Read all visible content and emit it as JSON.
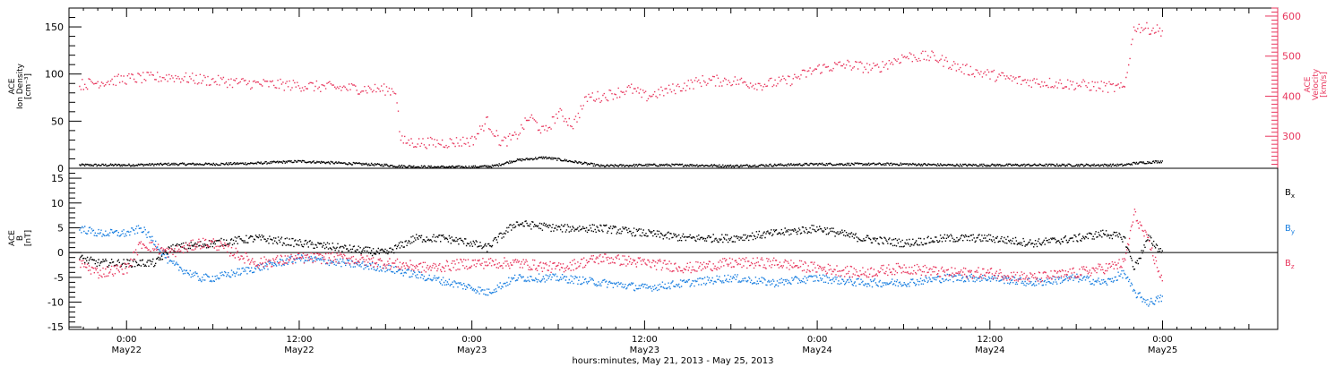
{
  "chart_data": [
    {
      "type": "scatter",
      "panel": "density-velocity",
      "ylabel_left": [
        "ACE",
        "Ion Density",
        "[cm⁻³]"
      ],
      "ylabel_right": [
        "ACE",
        "Velocity",
        "[km/s]"
      ],
      "ylim_left": [
        0,
        170
      ],
      "ylim_right": [
        220,
        620
      ],
      "yticks_left": [
        0,
        50,
        100,
        150
      ],
      "yticks_right": [
        300,
        400,
        500,
        600
      ],
      "series": [
        {
          "axis": "left",
          "color": "#000000",
          "x": [
            -3.3,
            0,
            3,
            6,
            9,
            12,
            15,
            18,
            18.7,
            21,
            24,
            25.5,
            27,
            29,
            30,
            33,
            36,
            39,
            42,
            45,
            48,
            51,
            54,
            57,
            60,
            63,
            66,
            69.3,
            70,
            72
          ],
          "y": [
            4,
            4,
            5,
            5,
            6,
            8,
            6,
            4,
            3,
            2,
            2,
            3,
            9,
            12,
            10,
            3,
            4,
            4,
            3,
            4,
            5,
            5,
            5,
            4,
            4,
            4,
            4,
            4,
            6,
            8
          ]
        },
        {
          "axis": "right",
          "color": "#e8365d",
          "x": [
            -3.3,
            0,
            3,
            6,
            9,
            12,
            15,
            18,
            18.7,
            19,
            20,
            22,
            24,
            25,
            26,
            27,
            28,
            29,
            30,
            31,
            32,
            33,
            34,
            35,
            36,
            38,
            40,
            42,
            44,
            46,
            48,
            50,
            52,
            54,
            56,
            58,
            60,
            62,
            64,
            66,
            68,
            69.3,
            70,
            71,
            72
          ],
          "y": [
            430,
            445,
            450,
            440,
            432,
            428,
            422,
            418,
            415,
            290,
            285,
            285,
            290,
            340,
            285,
            300,
            350,
            310,
            360,
            330,
            400,
            400,
            410,
            420,
            400,
            420,
            440,
            440,
            430,
            440,
            470,
            480,
            470,
            500,
            500,
            470,
            455,
            440,
            435,
            430,
            425,
            420,
            575,
            570,
            565
          ]
        }
      ]
    },
    {
      "type": "scatter",
      "panel": "magnetic-field",
      "ylabel": [
        "ACE",
        "B",
        "[nT]"
      ],
      "ylim": [
        -15.5,
        17
      ],
      "yticks": [
        -15,
        -10,
        -5,
        0,
        5,
        10,
        15
      ],
      "legend_placement": "right",
      "series": [
        {
          "name": "Bx",
          "color": "#000000",
          "x": [
            -3.3,
            -2,
            0,
            2,
            3,
            6,
            9,
            12,
            15,
            18,
            20,
            22,
            24,
            25,
            27,
            30,
            33,
            36,
            39,
            42,
            45,
            48,
            51,
            54,
            57,
            60,
            63,
            66,
            68,
            69.3,
            70,
            71,
            72
          ],
          "y": [
            -1,
            -2,
            -2,
            -2,
            1,
            2,
            3,
            2,
            1,
            0,
            3,
            3,
            2,
            1,
            6,
            5,
            5,
            4,
            3,
            3,
            4,
            5,
            3,
            2,
            3,
            3,
            2,
            3,
            4,
            3,
            -3,
            3,
            0
          ]
        },
        {
          "name": "By",
          "color": "#1a7fe0",
          "x": [
            -3.3,
            -2,
            0,
            1,
            2,
            3,
            5,
            6,
            9,
            12,
            15,
            18,
            21,
            24,
            25,
            27,
            30,
            33,
            36,
            39,
            42,
            45,
            48,
            51,
            54,
            57,
            60,
            63,
            66,
            68,
            69.3,
            70,
            71,
            72
          ],
          "y": [
            5,
            4,
            4,
            5,
            2,
            -2,
            -5,
            -5,
            -3,
            -1,
            -2,
            -3,
            -5,
            -7,
            -8,
            -5,
            -5,
            -6,
            -7,
            -6,
            -5,
            -6,
            -5,
            -6,
            -6,
            -5,
            -5,
            -6,
            -5,
            -6,
            -4,
            -8,
            -10,
            -9
          ]
        },
        {
          "name": "Bz",
          "color": "#e8365d",
          "x": [
            -3.3,
            -2,
            0,
            1,
            2,
            3,
            5,
            6,
            9,
            12,
            15,
            18,
            21,
            24,
            27,
            30,
            33,
            36,
            39,
            42,
            45,
            48,
            51,
            54,
            57,
            60,
            63,
            66,
            68,
            69.3,
            70,
            71,
            72
          ],
          "y": [
            -2,
            -4,
            -3,
            2,
            1,
            0,
            2,
            2,
            -2,
            -1,
            -1,
            -2,
            -3,
            -2,
            -2,
            -3,
            -1,
            -2,
            -3,
            -2,
            -2,
            -3,
            -4,
            -3,
            -4,
            -4,
            -5,
            -4,
            -3,
            -2,
            8,
            2,
            -6
          ]
        }
      ]
    }
  ],
  "xaxis": {
    "range_hours": [
      -4,
      80
    ],
    "ticks": [
      {
        "h": 0,
        "time": "0:00",
        "date": "May22"
      },
      {
        "h": 12,
        "time": "12:00",
        "date": "May22"
      },
      {
        "h": 24,
        "time": "0:00",
        "date": "May23"
      },
      {
        "h": 36,
        "time": "12:00",
        "date": "May23"
      },
      {
        "h": 48,
        "time": "0:00",
        "date": "May24"
      },
      {
        "h": 60,
        "time": "12:00",
        "date": "May24"
      },
      {
        "h": 72,
        "time": "0:00",
        "date": "May25"
      }
    ],
    "label": "hours:minutes, May 21, 2013 - May 25, 2013"
  },
  "colors": {
    "density": "#000000",
    "velocity": "#e8365d",
    "bx": "#000000",
    "by": "#1a7fe0",
    "bz": "#e8365d"
  },
  "legend": [
    {
      "main": "B",
      "sub": "x",
      "color": "#000000"
    },
    {
      "main": "B",
      "sub": "y",
      "color": "#1a7fe0"
    },
    {
      "main": "B",
      "sub": "z",
      "color": "#e8365d"
    }
  ]
}
